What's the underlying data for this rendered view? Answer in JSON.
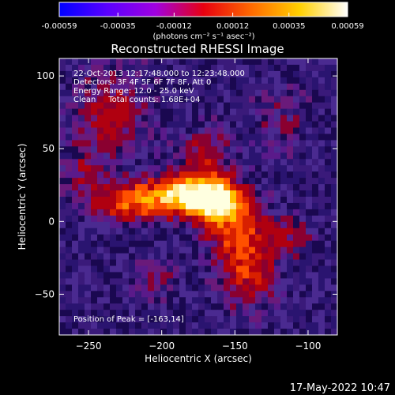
{
  "colorbar": {
    "tick_labels": [
      "-0.00059",
      "-0.00035",
      "-0.00012",
      "0.00012",
      "0.00035",
      "0.00059"
    ],
    "tick_values": [
      -0.00059,
      -0.00035,
      -0.00012,
      0.00012,
      0.00035,
      0.00059
    ],
    "range": [
      -0.00059,
      0.00059
    ],
    "unit_label": "(photons cm⁻² s⁻¹ asec⁻²)",
    "colors": [
      "#0000ff",
      "#5a00ff",
      "#a000e0",
      "#e80010",
      "#ff6a00",
      "#ffd000",
      "#ffffff"
    ]
  },
  "chart_data": {
    "type": "heatmap",
    "title": "Reconstructed RHESSI Image",
    "xlabel": "Heliocentric X (arcsec)",
    "ylabel": "Heliocentric Y (arcsec)",
    "xlim": [
      -270,
      -80
    ],
    "ylim": [
      -78,
      112
    ],
    "x_ticks": [
      -250,
      -200,
      -150,
      -100
    ],
    "y_ticks": [
      -50,
      0,
      50,
      100
    ],
    "annotations": [
      "22-Oct-2013 12:17:48.000 to 12:23:48.000",
      "Detectors: 3F 4F 5F 6F 7F 8F, Att 0",
      "Energy Range: 12.0 - 25.0 keV",
      "Clean     Total counts: 1.68E+04"
    ],
    "peak_label": "Position of Peak = [-163,14]",
    "peak": [
      -163,
      14
    ],
    "background_color": "#3a1a7a",
    "hot_colors": [
      "#8a0010",
      "#d01010",
      "#ff5a00",
      "#ffb000",
      "#ffffc0"
    ]
  },
  "footer": {
    "timestamp": "17-May-2022 10:47"
  }
}
